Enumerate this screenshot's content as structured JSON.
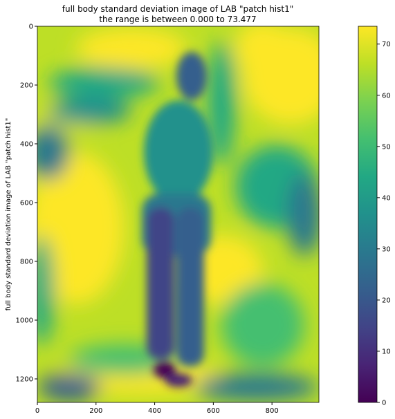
{
  "chart_data": {
    "type": "heatmap",
    "title": "full body standard deviation image of LAB \"patch hist1\"",
    "subtitle": "the range is between 0.000 to  73.477",
    "xlabel": "",
    "ylabel": "full body standard deviation image of LAB \"patch hist1\"",
    "xlim": [
      0,
      960
    ],
    "ylim": [
      1280,
      0
    ],
    "xticks": [
      0,
      200,
      400,
      600,
      800
    ],
    "yticks": [
      0,
      200,
      400,
      600,
      800,
      1000,
      1200
    ],
    "colormap": "viridis",
    "colorbar": {
      "range": [
        0,
        73.477
      ],
      "ticks": [
        0,
        10,
        20,
        30,
        40,
        50,
        60,
        70
      ]
    },
    "grid": false,
    "colors": {
      "low": "#440154",
      "mid": "#21918c",
      "high": "#fde725"
    }
  }
}
